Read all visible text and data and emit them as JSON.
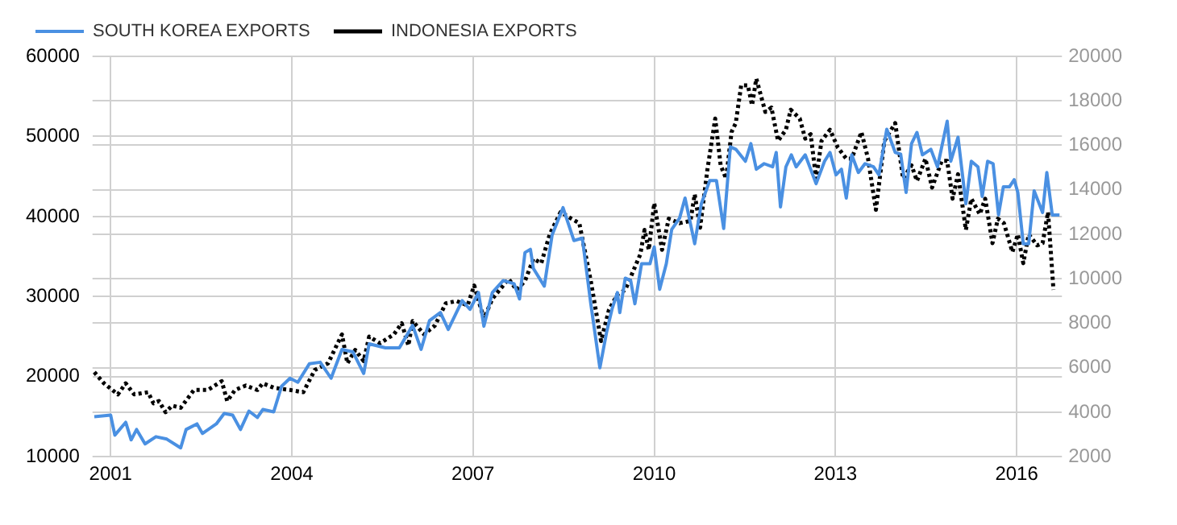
{
  "chart_data": {
    "type": "line",
    "legend": "top left",
    "grid": true,
    "marker": "none",
    "xlim": [
      2000.7,
      2016.75
    ],
    "xticks": [
      2001,
      2004,
      2007,
      2010,
      2013,
      2016
    ],
    "ylim": [
      10000,
      60000
    ],
    "yticks": [
      10000,
      20000,
      30000,
      40000,
      50000,
      60000
    ],
    "y2lim": [
      2000,
      20000
    ],
    "y2ticks": [
      2000,
      4000,
      6000,
      8000,
      10000,
      12000,
      14000,
      16000,
      18000,
      20000
    ],
    "series": [
      {
        "name": "SOUTH KOREA EXPORTS",
        "color": "#4a90e2",
        "line_style": "solid",
        "axis": "y",
        "x": [
          2000.73,
          2001.0,
          2001.07,
          2001.25,
          2001.34,
          2001.43,
          2001.57,
          2001.75,
          2001.93,
          2002.16,
          2002.25,
          2002.43,
          2002.52,
          2002.75,
          2002.88,
          2003.02,
          2003.15,
          2003.29,
          2003.43,
          2003.52,
          2003.7,
          2003.83,
          2003.97,
          2004.1,
          2004.29,
          2004.47,
          2004.65,
          2004.83,
          2005.01,
          2005.19,
          2005.28,
          2005.55,
          2005.78,
          2006.0,
          2006.14,
          2006.28,
          2006.46,
          2006.59,
          2006.82,
          2006.95,
          2007.09,
          2007.18,
          2007.32,
          2007.5,
          2007.68,
          2007.77,
          2007.86,
          2007.95,
          2008.0,
          2008.18,
          2008.31,
          2008.49,
          2008.67,
          2008.81,
          2008.95,
          2009.1,
          2009.21,
          2009.3,
          2009.39,
          2009.43,
          2009.52,
          2009.61,
          2009.68,
          2009.79,
          2009.93,
          2010.0,
          2010.09,
          2010.2,
          2010.29,
          2010.42,
          2010.51,
          2010.67,
          2010.78,
          2010.92,
          2011.03,
          2011.15,
          2011.26,
          2011.35,
          2011.51,
          2011.6,
          2011.69,
          2011.82,
          2011.96,
          2012.02,
          2012.09,
          2012.18,
          2012.27,
          2012.35,
          2012.5,
          2012.68,
          2012.82,
          2012.91,
          2013.01,
          2013.1,
          2013.18,
          2013.27,
          2013.38,
          2013.49,
          2013.63,
          2013.72,
          2013.85,
          2013.99,
          2014.08,
          2014.17,
          2014.26,
          2014.35,
          2014.44,
          2014.58,
          2014.69,
          2014.85,
          2014.91,
          2015.03,
          2015.16,
          2015.25,
          2015.36,
          2015.43,
          2015.52,
          2015.61,
          2015.7,
          2015.78,
          2015.88,
          2015.96,
          2016.02,
          2016.11,
          2016.2,
          2016.29,
          2016.43,
          2016.5,
          2016.59,
          2016.71
        ],
        "values": [
          15000,
          15200,
          12700,
          14300,
          12100,
          13400,
          11600,
          12500,
          12200,
          11100,
          13400,
          14100,
          12900,
          14100,
          15400,
          15200,
          13400,
          15700,
          14900,
          15900,
          15600,
          18800,
          19800,
          19300,
          21600,
          21800,
          19800,
          23400,
          23100,
          20400,
          24100,
          23600,
          23600,
          26400,
          23400,
          27000,
          28000,
          25900,
          29500,
          28400,
          30500,
          26300,
          30500,
          32000,
          31600,
          29700,
          35500,
          35900,
          33500,
          31300,
          37700,
          41100,
          37000,
          37300,
          29100,
          21100,
          25500,
          28400,
          30500,
          28000,
          32300,
          32000,
          29100,
          34100,
          34100,
          36200,
          30900,
          34100,
          38400,
          39800,
          42300,
          36600,
          41600,
          44500,
          44500,
          38500,
          48700,
          48400,
          46900,
          49100,
          45900,
          46600,
          46200,
          48000,
          41200,
          46200,
          47700,
          46200,
          47700,
          44100,
          46900,
          48000,
          45200,
          45900,
          42300,
          47700,
          45500,
          46600,
          46200,
          45200,
          50900,
          48000,
          47800,
          43000,
          49100,
          50500,
          47700,
          48400,
          46200,
          51900,
          46900,
          49900,
          41600,
          46900,
          46200,
          42500,
          46900,
          46600,
          40200,
          43700,
          43700,
          44600,
          43000,
          36600,
          36600,
          43200,
          40500,
          45500,
          40200,
          40200
        ]
      },
      {
        "name": "INDONESIA EXPORTS",
        "color": "#000000",
        "line_style": "dotted",
        "axis": "y2",
        "x": [
          2000.73,
          2000.89,
          2001.12,
          2001.25,
          2001.39,
          2001.62,
          2001.71,
          2001.8,
          2001.91,
          2002.02,
          2002.16,
          2002.38,
          2002.61,
          2002.84,
          2002.93,
          2003.06,
          2003.24,
          2003.43,
          2003.52,
          2003.7,
          2003.97,
          2004.19,
          2004.38,
          2004.6,
          2004.83,
          2004.92,
          2005.05,
          2005.19,
          2005.28,
          2005.46,
          2005.69,
          2005.82,
          2005.93,
          2006.0,
          2006.19,
          2006.37,
          2006.55,
          2006.73,
          2006.91,
          2007.02,
          2007.18,
          2007.32,
          2007.5,
          2007.59,
          2007.72,
          2007.86,
          2008.0,
          2008.13,
          2008.27,
          2008.45,
          2008.63,
          2008.76,
          2008.95,
          2009.12,
          2009.25,
          2009.39,
          2009.52,
          2009.66,
          2009.77,
          2009.84,
          2009.91,
          2010.0,
          2010.13,
          2010.24,
          2010.42,
          2010.6,
          2010.67,
          2010.76,
          2010.88,
          2011.01,
          2011.1,
          2011.19,
          2011.28,
          2011.35,
          2011.44,
          2011.55,
          2011.62,
          2011.69,
          2011.84,
          2011.94,
          2012.05,
          2012.18,
          2012.26,
          2012.41,
          2012.5,
          2012.59,
          2012.68,
          2012.77,
          2012.91,
          2013.04,
          2013.18,
          2013.27,
          2013.43,
          2013.54,
          2013.67,
          2013.81,
          2013.99,
          2014.12,
          2014.26,
          2014.35,
          2014.49,
          2014.6,
          2014.76,
          2014.85,
          2014.94,
          2015.03,
          2015.16,
          2015.25,
          2015.39,
          2015.48,
          2015.6,
          2015.69,
          2015.79,
          2015.93,
          2016.02,
          2016.11,
          2016.2,
          2016.34,
          2016.43,
          2016.52,
          2016.61
        ],
        "values": [
          5800,
          5300,
          4800,
          5300,
          4800,
          4900,
          4400,
          4500,
          4000,
          4300,
          4200,
          5000,
          5000,
          5400,
          4500,
          5000,
          5200,
          5000,
          5300,
          5100,
          5000,
          4900,
          5900,
          6200,
          7500,
          6200,
          6800,
          6300,
          7400,
          7100,
          7500,
          8000,
          7000,
          8100,
          7500,
          7900,
          8900,
          9000,
          8800,
          9700,
          8200,
          9100,
          9700,
          10000,
          9500,
          9900,
          10900,
          10700,
          12000,
          13000,
          12700,
          12500,
          9900,
          7200,
          8600,
          9300,
          9500,
          10400,
          11100,
          12200,
          11300,
          13400,
          11300,
          12700,
          12500,
          12600,
          13800,
          12300,
          14900,
          17200,
          15100,
          14500,
          16600,
          17000,
          18700,
          18700,
          17800,
          19000,
          17500,
          17700,
          16200,
          16700,
          17600,
          17200,
          16300,
          16500,
          14500,
          16200,
          16700,
          15900,
          15400,
          15400,
          16600,
          15400,
          13100,
          16200,
          17000,
          14500,
          15100,
          14400,
          15400,
          14100,
          15300,
          15300,
          13600,
          14700,
          12200,
          13600,
          12900,
          13600,
          11600,
          12700,
          12500,
          11200,
          12000,
          10700,
          12000,
          11500,
          11600,
          13000,
          9500
        ]
      }
    ]
  }
}
